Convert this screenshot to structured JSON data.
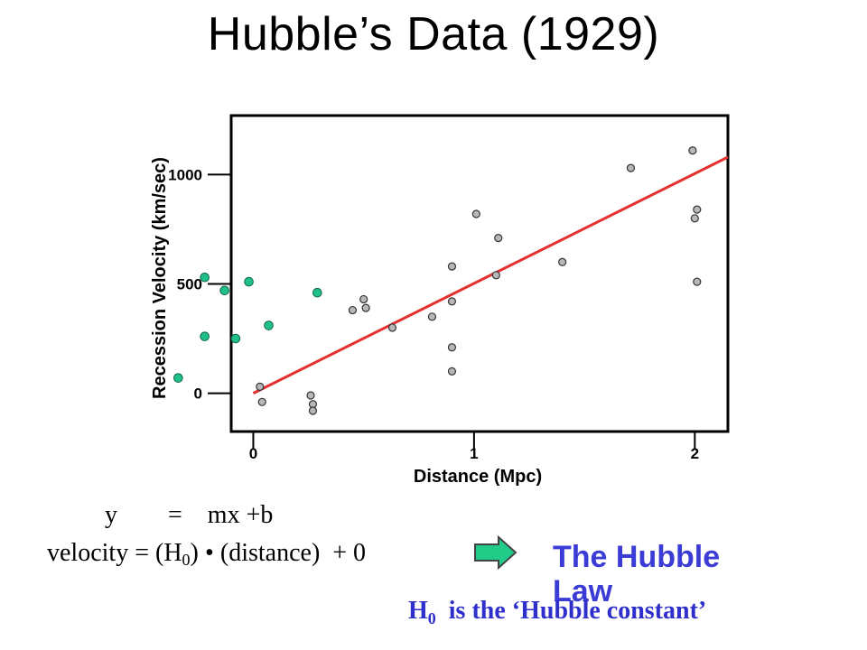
{
  "slide": {
    "title": "Hubble’s Data (1929)"
  },
  "equation": {
    "line1": {
      "lhs": "y",
      "eq": "=",
      "rhs": "mx +b"
    },
    "line2": {
      "lhs": "velocity",
      "eq": "= (H",
      "sub": "0",
      "close": ")",
      "rest": "(distance)  + 0"
    }
  },
  "hubble_law_label": "The Hubble Law",
  "h0_note": {
    "h": "H",
    "sub": "0",
    "rest": "  is the ‘Hubble constant’"
  },
  "colors": {
    "fit_line": "#e53030",
    "original_points_fill": "#b8b8b8",
    "added_points_fill": "#1fc08c",
    "arrow_fill": "#22cc88",
    "arrow_stroke": "#444444",
    "label_blue": "#3b3bd6"
  },
  "icons": {
    "arrow": "right-arrow-icon"
  },
  "chart_data": {
    "type": "scatter",
    "title": "",
    "xlabel": "Distance (Mpc)",
    "ylabel": "Recession Velocity (km/sec)",
    "xlim": [
      -0.1,
      2.15
    ],
    "ylim": [
      -175,
      1270
    ],
    "x_ticks": [
      0,
      1,
      2
    ],
    "x_tick_labels": [
      "0",
      "1",
      "2"
    ],
    "y_ticks": [
      0,
      500,
      1000
    ],
    "y_tick_labels": [
      "0",
      "500",
      "1000"
    ],
    "grid": false,
    "series": [
      {
        "points": [
          [
            0.03,
            30
          ],
          [
            0.04,
            -40
          ],
          [
            0.26,
            -10
          ],
          [
            0.27,
            -50
          ],
          [
            0.27,
            -80
          ],
          [
            0.45,
            380
          ],
          [
            0.5,
            430
          ],
          [
            0.51,
            390
          ],
          [
            0.63,
            300
          ],
          [
            0.81,
            350
          ],
          [
            0.9,
            580
          ],
          [
            0.9,
            420
          ],
          [
            0.9,
            210
          ],
          [
            0.9,
            100
          ],
          [
            1.01,
            820
          ],
          [
            1.1,
            540
          ],
          [
            1.11,
            710
          ],
          [
            1.4,
            600
          ],
          [
            1.71,
            1030
          ],
          [
            1.99,
            1110
          ],
          [
            2.0,
            800
          ],
          [
            2.01,
            840
          ],
          [
            2.01,
            510
          ]
        ]
      },
      {
        "points": [
          [
            -0.34,
            70
          ],
          [
            -0.22,
            530
          ],
          [
            -0.22,
            260
          ],
          [
            -0.13,
            470
          ],
          [
            -0.08,
            250
          ],
          [
            -0.02,
            510
          ],
          [
            0.07,
            310
          ],
          [
            0.29,
            460
          ]
        ]
      }
    ],
    "fit_line": {
      "x": [
        0,
        2.15
      ],
      "y": [
        0,
        1080
      ]
    }
  }
}
